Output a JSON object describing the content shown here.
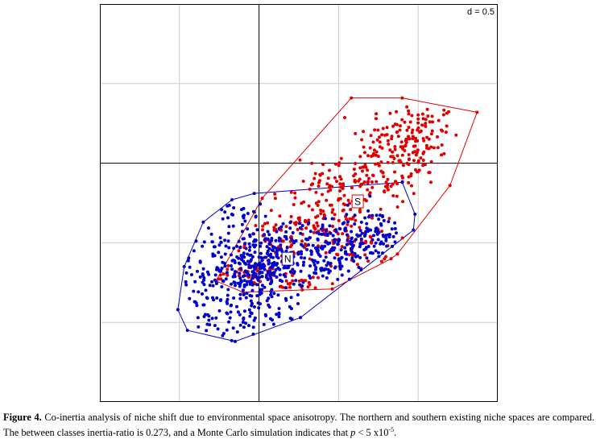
{
  "figure": {
    "caption_label": "Figure 4.",
    "caption_text": " Co-inertia analysis of niche shift due to environmental space anisotropy. The northern and southern existing niche spaces are compared. The between classes inertia-ratio is 0.273, and a Monte Carlo simulation indicates that ",
    "caption_p": "p",
    "caption_tail": " < 5 x10",
    "caption_exp": "-5",
    "caption_end": "."
  },
  "chart_data": {
    "type": "scatter",
    "scale_label": "d = 0.5",
    "grid_step": 0.5,
    "xlim": [
      -1.0,
      1.5
    ],
    "ylim": [
      -1.5,
      1.0
    ],
    "grid": true,
    "colors": {
      "north": "#0000cc",
      "south": "#e00000",
      "grid": "#cccccc",
      "axis": "#000000"
    },
    "series": [
      {
        "key": "north",
        "label": "N",
        "centroid": [
          0.18,
          -0.6
        ],
        "hull": [
          [
            -0.51,
            -0.92
          ],
          [
            -0.45,
            -1.05
          ],
          [
            -0.15,
            -1.12
          ],
          [
            0.26,
            -0.97
          ],
          [
            0.97,
            -0.42
          ],
          [
            0.98,
            -0.32
          ],
          [
            0.9,
            -0.12
          ],
          [
            -0.03,
            -0.19
          ],
          [
            -0.17,
            -0.23
          ],
          [
            -0.35,
            -0.37
          ],
          [
            -0.47,
            -0.65
          ]
        ],
        "clusters": [
          {
            "cx": 0.03,
            "cy": -0.65,
            "sx": 0.13,
            "sy": 0.11,
            "n": 230
          },
          {
            "cx": 0.4,
            "cy": -0.55,
            "sx": 0.18,
            "sy": 0.1,
            "n": 180
          },
          {
            "cx": 0.7,
            "cy": -0.45,
            "sx": 0.12,
            "sy": 0.09,
            "n": 90
          },
          {
            "cx": -0.18,
            "cy": -0.55,
            "sx": 0.16,
            "sy": 0.22,
            "n": 120
          },
          {
            "cx": -0.05,
            "cy": -0.95,
            "sx": 0.15,
            "sy": 0.08,
            "n": 60
          },
          {
            "cx": -0.3,
            "cy": -0.75,
            "sx": 0.1,
            "sy": 0.12,
            "n": 40
          }
        ]
      },
      {
        "key": "south",
        "label": "S",
        "centroid": [
          0.62,
          -0.24
        ],
        "hull": [
          [
            -0.27,
            -0.74
          ],
          [
            -0.1,
            -0.81
          ],
          [
            0.46,
            -0.79
          ],
          [
            0.83,
            -0.6
          ],
          [
            0.87,
            -0.57
          ],
          [
            1.2,
            -0.14
          ],
          [
            1.37,
            0.32
          ],
          [
            0.9,
            0.41
          ],
          [
            0.58,
            0.41
          ],
          [
            0.02,
            -0.22
          ]
        ],
        "clusters": [
          {
            "cx": 0.95,
            "cy": 0.15,
            "sx": 0.16,
            "sy": 0.12,
            "n": 150
          },
          {
            "cx": 0.65,
            "cy": -0.1,
            "sx": 0.18,
            "sy": 0.1,
            "n": 130
          },
          {
            "cx": 0.4,
            "cy": -0.35,
            "sx": 0.2,
            "sy": 0.09,
            "n": 110
          },
          {
            "cx": 0.2,
            "cy": -0.5,
            "sx": 0.14,
            "sy": 0.07,
            "n": 60
          },
          {
            "cx": 0.25,
            "cy": -0.75,
            "sx": 0.12,
            "sy": 0.03,
            "n": 30
          },
          {
            "cx": -0.05,
            "cy": -0.7,
            "sx": 0.14,
            "sy": 0.04,
            "n": 40
          },
          {
            "cx": 0.6,
            "cy": -0.55,
            "sx": 0.1,
            "sy": 0.06,
            "n": 30
          }
        ]
      }
    ]
  }
}
